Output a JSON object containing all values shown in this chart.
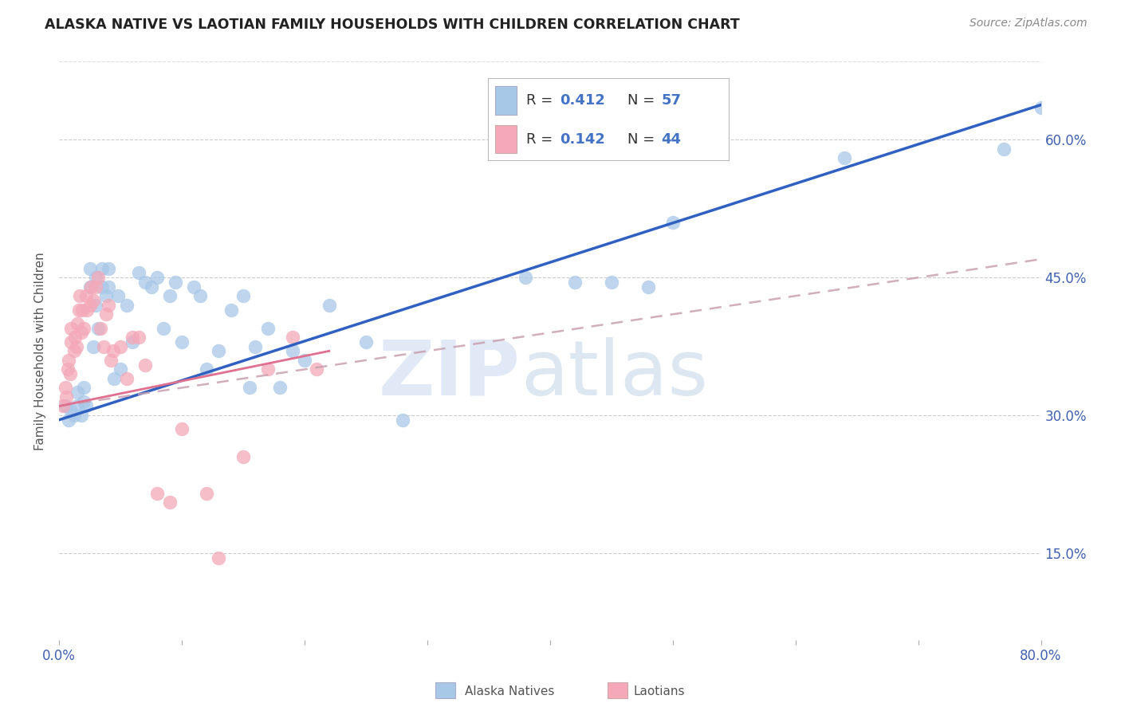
{
  "title": "ALASKA NATIVE VS LAOTIAN FAMILY HOUSEHOLDS WITH CHILDREN CORRELATION CHART",
  "source": "Source: ZipAtlas.com",
  "ylabel": "Family Households with Children",
  "alaska_color": "#a8c8e8",
  "laotian_color": "#f4a8b8",
  "alaska_line_color": "#3060c0",
  "laotian_line_color": "#e07090",
  "laotian_dash_color": "#c8a0b0",
  "watermark_zip": "ZIP",
  "watermark_atlas": "atlas",
  "xlim": [
    0.0,
    0.8
  ],
  "ylim": [
    0.055,
    0.685
  ],
  "xticks": [
    0.0,
    0.1,
    0.2,
    0.3,
    0.4,
    0.5,
    0.6,
    0.7,
    0.8
  ],
  "yticks": [
    0.15,
    0.3,
    0.45,
    0.6
  ],
  "ytick_labels": [
    "15.0%",
    "30.0%",
    "45.0%",
    "60.0%"
  ],
  "alaska_x": [
    0.005,
    0.008,
    0.01,
    0.012,
    0.015,
    0.015,
    0.018,
    0.02,
    0.02,
    0.022,
    0.025,
    0.025,
    0.028,
    0.03,
    0.03,
    0.032,
    0.035,
    0.035,
    0.038,
    0.04,
    0.04,
    0.045,
    0.048,
    0.05,
    0.055,
    0.06,
    0.065,
    0.07,
    0.075,
    0.08,
    0.085,
    0.09,
    0.095,
    0.1,
    0.11,
    0.115,
    0.12,
    0.13,
    0.14,
    0.15,
    0.155,
    0.16,
    0.17,
    0.18,
    0.19,
    0.2,
    0.22,
    0.25,
    0.28,
    0.38,
    0.42,
    0.45,
    0.48,
    0.5,
    0.64,
    0.77,
    0.8
  ],
  "alaska_y": [
    0.31,
    0.295,
    0.305,
    0.3,
    0.31,
    0.325,
    0.3,
    0.315,
    0.33,
    0.31,
    0.44,
    0.46,
    0.375,
    0.42,
    0.45,
    0.395,
    0.44,
    0.46,
    0.43,
    0.44,
    0.46,
    0.34,
    0.43,
    0.35,
    0.42,
    0.38,
    0.455,
    0.445,
    0.44,
    0.45,
    0.395,
    0.43,
    0.445,
    0.38,
    0.44,
    0.43,
    0.35,
    0.37,
    0.415,
    0.43,
    0.33,
    0.375,
    0.395,
    0.33,
    0.37,
    0.36,
    0.42,
    0.38,
    0.295,
    0.45,
    0.445,
    0.445,
    0.44,
    0.51,
    0.58,
    0.59,
    0.635
  ],
  "laotian_x": [
    0.003,
    0.005,
    0.006,
    0.007,
    0.008,
    0.009,
    0.01,
    0.01,
    0.012,
    0.013,
    0.014,
    0.015,
    0.016,
    0.017,
    0.018,
    0.019,
    0.02,
    0.022,
    0.023,
    0.025,
    0.026,
    0.028,
    0.03,
    0.032,
    0.034,
    0.036,
    0.038,
    0.04,
    0.042,
    0.044,
    0.05,
    0.055,
    0.06,
    0.065,
    0.07,
    0.08,
    0.09,
    0.1,
    0.12,
    0.13,
    0.15,
    0.17,
    0.19,
    0.21
  ],
  "laotian_y": [
    0.31,
    0.33,
    0.32,
    0.35,
    0.36,
    0.345,
    0.38,
    0.395,
    0.37,
    0.385,
    0.375,
    0.4,
    0.415,
    0.43,
    0.39,
    0.415,
    0.395,
    0.43,
    0.415,
    0.42,
    0.44,
    0.425,
    0.44,
    0.45,
    0.395,
    0.375,
    0.41,
    0.42,
    0.36,
    0.37,
    0.375,
    0.34,
    0.385,
    0.385,
    0.355,
    0.215,
    0.205,
    0.285,
    0.215,
    0.145,
    0.255,
    0.35,
    0.385,
    0.35
  ]
}
